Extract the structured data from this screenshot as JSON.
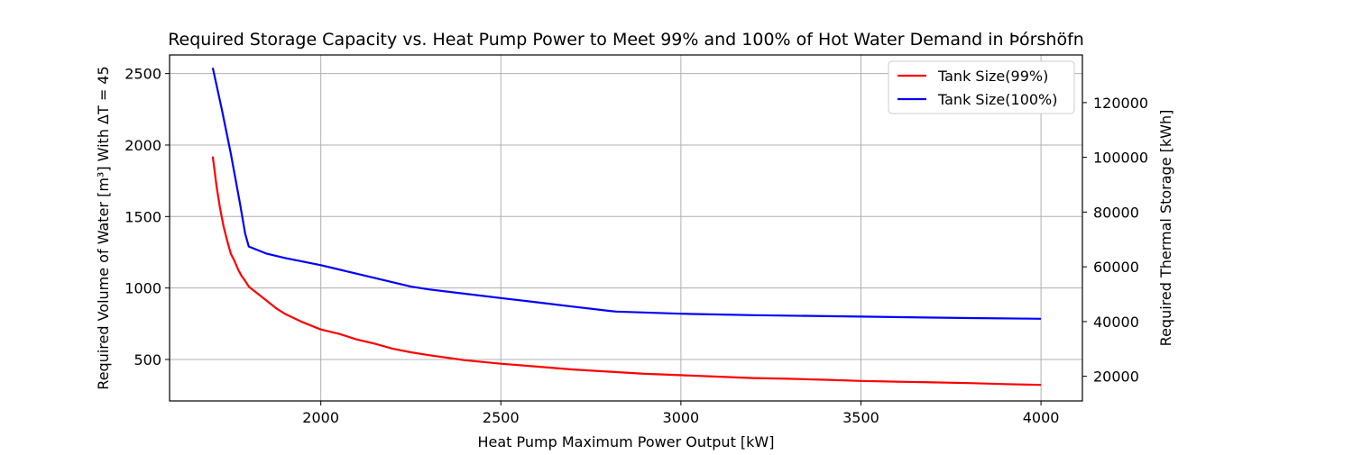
{
  "chart_data": {
    "type": "line",
    "title": "Required Storage Capacity vs. Heat Pump Power to Meet 99% and 100% of Hot Water Demand in Þórshöfn",
    "xlabel": "Heat Pump Maximum Power Output [kW]",
    "ylabel": "Required Volume of Water [m³] With ΔT = 45",
    "y2label": "Required Thermal Storage [kWh]",
    "xlim": [
      1580,
      4115
    ],
    "ylim": [
      210,
      2630
    ],
    "y2lim": [
      11000,
      137400
    ],
    "xticks": [
      2000,
      2500,
      3000,
      3500,
      4000
    ],
    "yticks": [
      500,
      1000,
      1500,
      2000,
      2500
    ],
    "y2ticks": [
      20000,
      40000,
      60000,
      80000,
      100000,
      120000
    ],
    "grid": true,
    "legend_position": "upper-right",
    "series": [
      {
        "name": "Tank Size(99%)",
        "color": "#ff0000",
        "x": [
          1700,
          1710,
          1720,
          1730,
          1740,
          1750,
          1760,
          1770,
          1780,
          1790,
          1800,
          1825,
          1850,
          1875,
          1900,
          1950,
          2000,
          2050,
          2100,
          2150,
          2200,
          2250,
          2300,
          2400,
          2500,
          2600,
          2700,
          2800,
          2900,
          3000,
          3100,
          3200,
          3300,
          3400,
          3500,
          3600,
          3700,
          3800,
          3900,
          4000
        ],
        "y": [
          1920,
          1720,
          1560,
          1430,
          1330,
          1240,
          1190,
          1130,
          1085,
          1050,
          1010,
          960,
          910,
          860,
          820,
          760,
          710,
          680,
          640,
          610,
          575,
          550,
          530,
          495,
          470,
          450,
          430,
          415,
          400,
          390,
          380,
          370,
          365,
          358,
          350,
          345,
          340,
          335,
          328,
          322
        ]
      },
      {
        "name": "Tank Size(100%)",
        "color": "#0000ff",
        "x": [
          1700,
          1725,
          1750,
          1775,
          1790,
          1800,
          1825,
          1850,
          1900,
          2000,
          2100,
          2250,
          2300,
          2400,
          2500,
          2600,
          2700,
          2800,
          2820,
          3000,
          3200,
          3500,
          3800,
          4000
        ],
        "y": [
          2540,
          2250,
          1940,
          1600,
          1380,
          1290,
          1265,
          1240,
          1210,
          1160,
          1100,
          1010,
          990,
          960,
          930,
          900,
          870,
          840,
          835,
          820,
          810,
          800,
          790,
          785
        ]
      }
    ]
  }
}
